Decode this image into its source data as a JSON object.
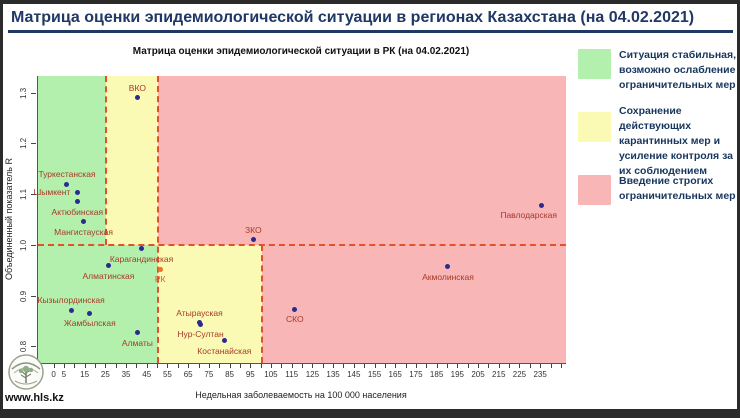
{
  "page": {
    "title": "Матрица оценки эпидемиологической ситуации в регионах Казахстана (на 04.02.2021)"
  },
  "colors": {
    "green": "#b4f0ad",
    "yellow": "#fbfab4",
    "pink": "#f8b6b6",
    "dash": "#e3512b",
    "point": "#2a2a8f",
    "point_label": "#a63a28",
    "rk_point": "#f07020",
    "rk_label": "#e8502e",
    "navy": "#1f3864"
  },
  "legend": {
    "items": [
      {
        "color": "green",
        "text": "Ситуация стабильная, возможно ослабление ограничительных мер"
      },
      {
        "color": "yellow",
        "text": "Сохранение действующих карантинных мер и усиление контроля за их соблюдением"
      },
      {
        "color": "pink",
        "text": "Введение строгих ограничительных мер"
      }
    ]
  },
  "footer": {
    "url": "www.hls.kz",
    "logo": "tree-emblem"
  },
  "chart_data": {
    "type": "scatter",
    "title": "Матрица оценки эпидемиологической ситуации в РК (на 04.02.2021)",
    "xlabel": "Недельная заболеваемость на 100 000 населения",
    "ylabel": "Объединенный показатель R",
    "xlim": [
      -8,
      247
    ],
    "ylim": [
      0.767,
      1.333
    ],
    "x_tick_labels": [
      0,
      5,
      15,
      25,
      35,
      45,
      55,
      65,
      75,
      85,
      95,
      105,
      115,
      125,
      135,
      145,
      155,
      165,
      175,
      185,
      195,
      205,
      215,
      225,
      235
    ],
    "x_minor_step": 5,
    "x_minor_max": 245,
    "y_ticks": [
      0.8,
      0.9,
      1.0,
      1.1,
      1.2,
      1.3
    ],
    "grid": false,
    "zones": [
      {
        "color": "green",
        "x0": -8,
        "x1": 25,
        "r0": 1.0,
        "r1": 1.333
      },
      {
        "color": "yellow",
        "x0": 25,
        "x1": 50,
        "r0": 1.0,
        "r1": 1.333
      },
      {
        "color": "pink",
        "x0": 50,
        "x1": 247,
        "r0": 1.0,
        "r1": 1.333
      },
      {
        "color": "green",
        "x0": -8,
        "x1": 50,
        "r0": 0.767,
        "r1": 1.0
      },
      {
        "color": "yellow",
        "x0": 50,
        "x1": 100,
        "r0": 0.767,
        "r1": 1.0
      },
      {
        "color": "pink",
        "x0": 100,
        "x1": 247,
        "r0": 0.767,
        "r1": 1.0
      }
    ],
    "boundaries": {
      "r_threshold": 1.0,
      "v_upper_only": [
        25
      ],
      "v_full_height": [
        50
      ],
      "v_lower_only": [
        100
      ]
    },
    "points": [
      {
        "name": "ВКО",
        "x": 40,
        "r": 1.29,
        "label_pos": "above"
      },
      {
        "name": "Туркестанская",
        "x": 6,
        "r": 1.12,
        "label_pos": "above"
      },
      {
        "name": "Шымкент",
        "x": 11,
        "r": 1.104,
        "label_pos": "left"
      },
      {
        "name": "Актюбинская",
        "x": 11,
        "r": 1.085,
        "label_pos": "below"
      },
      {
        "name": "Мангистауская",
        "x": 14,
        "r": 1.046,
        "label_pos": "below"
      },
      {
        "name": "ЗКО",
        "x": 96,
        "r": 1.01,
        "label_pos": "above"
      },
      {
        "name": "Павлодарская",
        "x": 235,
        "r": 1.078,
        "label_pos": "below"
      },
      {
        "name": "Карагандинская",
        "x": 42,
        "r": 0.992,
        "label_pos": "below"
      },
      {
        "name": "РК",
        "x": 51,
        "r": 0.952,
        "label_pos": "below",
        "highlight": true
      },
      {
        "name": "Алматинская",
        "x": 26,
        "r": 0.959,
        "label_pos": "below"
      },
      {
        "name": "Акмолинская",
        "x": 190,
        "r": 0.957,
        "label_pos": "below"
      },
      {
        "name": "Кызылординская",
        "x": 8,
        "r": 0.871,
        "label_pos": "above"
      },
      {
        "name": "Жамбылская",
        "x": 17,
        "r": 0.865,
        "label_pos": "below"
      },
      {
        "name": "СКО",
        "x": 116,
        "r": 0.873,
        "label_pos": "below"
      },
      {
        "name": "Атырауская",
        "x": 70,
        "r": 0.846,
        "label_pos": "above"
      },
      {
        "name": "Нур-Султан",
        "x": 70.5,
        "r": 0.843,
        "label_pos": "below"
      },
      {
        "name": "Костанайская",
        "x": 82,
        "r": 0.811,
        "label_pos": "below"
      },
      {
        "name": "Алматы",
        "x": 40,
        "r": 0.827,
        "label_pos": "below"
      }
    ]
  }
}
